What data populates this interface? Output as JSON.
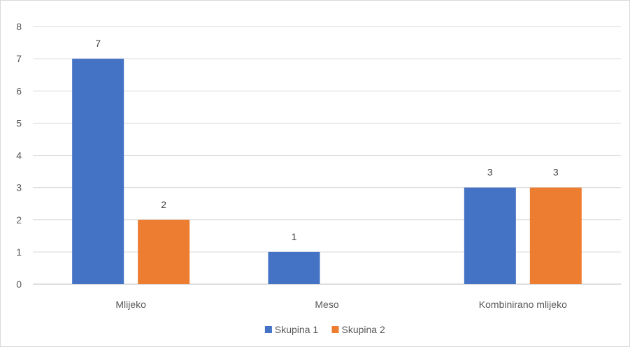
{
  "chart_data": {
    "type": "bar",
    "categories": [
      "Mlijeko",
      "Meso",
      "Kombinirano mlijeko"
    ],
    "series": [
      {
        "name": "Skupina 1",
        "color": "#4472C4",
        "values": [
          7,
          1,
          3
        ]
      },
      {
        "name": "Skupina 2",
        "color": "#ED7D31",
        "values": [
          2,
          0,
          3
        ]
      }
    ],
    "data_labels": [
      [
        "7",
        "1",
        "3"
      ],
      [
        "2",
        "",
        "3"
      ]
    ],
    "yticks": [
      0,
      1,
      2,
      3,
      4,
      5,
      6,
      7,
      8
    ],
    "ylim": [
      0,
      8
    ],
    "grid": true,
    "legend_position": "bottom"
  }
}
